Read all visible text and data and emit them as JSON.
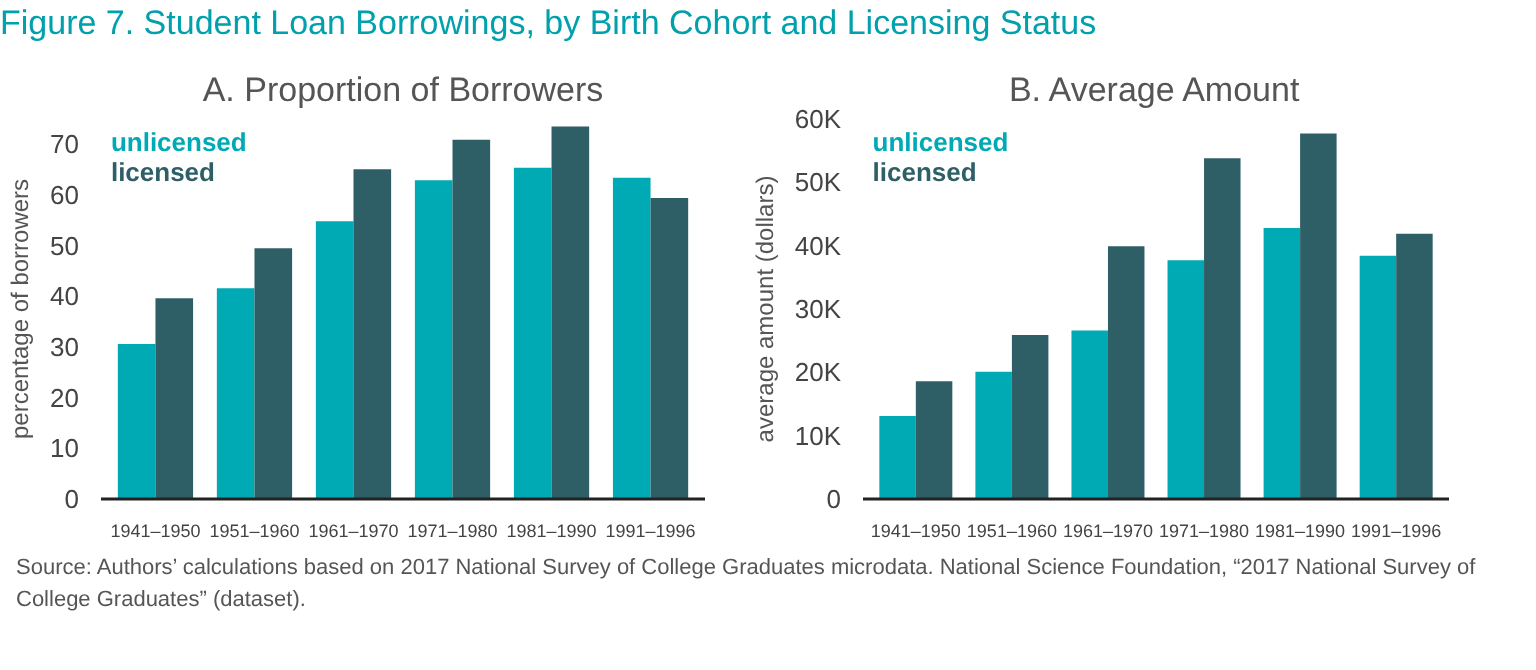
{
  "chart_data": [
    {
      "type": "bar",
      "title": "A. Proportion of Borrowers",
      "ylabel": "percentage of borrowers",
      "categories": [
        "1941–1950",
        "1951–1960",
        "1961–1970",
        "1971–1980",
        "1981–1990",
        "1991–1996"
      ],
      "series": [
        {
          "name": "unlicensed",
          "color": "#00aab5",
          "values": [
            30.6,
            41.6,
            54.8,
            62.9,
            65.4,
            63.4
          ]
        },
        {
          "name": "licensed",
          "color": "#2f5f66",
          "values": [
            39.6,
            49.5,
            65.1,
            70.9,
            73.5,
            59.4
          ]
        }
      ],
      "ylim": [
        0,
        75
      ],
      "yticks": [
        0,
        10,
        20,
        30,
        40,
        50,
        60,
        70
      ],
      "legend": "top left",
      "annotations": [
        "Figure 7. Student Loan Borrowings, by Birth Cohort and Licensing Status",
        "Source: Authors’ calculations based on 2017 National Survey of College Graduates microdata. National Science Foundation, “2017 National Survey of College Graduates” (dataset)."
      ]
    },
    {
      "type": "bar",
      "title": "B. Average Amount",
      "ylabel": "average amount (dollars)",
      "categories": [
        "1941–1950",
        "1951–1960",
        "1961–1970",
        "1971–1980",
        "1981–1990",
        "1991–1996"
      ],
      "series": [
        {
          "name": "unlicensed",
          "color": "#00aab5",
          "values": [
            13100,
            20100,
            26600,
            37700,
            42800,
            38400
          ]
        },
        {
          "name": "licensed",
          "color": "#2f5f66",
          "values": [
            18600,
            25900,
            39900,
            53800,
            57700,
            41900
          ]
        }
      ],
      "ylim": [
        0,
        60000
      ],
      "yticks": [
        0,
        {
          "value": 10000,
          "label": "10K"
        },
        {
          "value": 20000,
          "label": "20K"
        },
        {
          "value": 30000,
          "label": "30K"
        },
        {
          "value": 40000,
          "label": "40K"
        },
        {
          "value": 50000,
          "label": "50K"
        },
        {
          "value": 60000,
          "label": "60K"
        }
      ],
      "legend": "top left"
    }
  ]
}
